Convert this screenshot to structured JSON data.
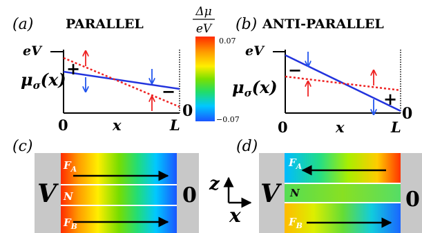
{
  "panels": {
    "a": {
      "letter": "(a)",
      "title": "PARALLEL"
    },
    "b": {
      "letter": "(b)",
      "title": "ANTI-PARALLEL"
    },
    "c": {
      "letter": "(c)"
    },
    "d": {
      "letter": "(d)"
    }
  },
  "axes": {
    "ylabel_var": "μ",
    "ylabel_sub": "σ",
    "ylabel_arg": "(x)",
    "ytop": "eV",
    "yzero": "0",
    "x0": "0",
    "xlabel": "x",
    "xend": "L"
  },
  "signs": {
    "plus": "+",
    "minus": "−"
  },
  "colorbar": {
    "num": "Δμ",
    "den": "eV",
    "max": "0.07",
    "min": "−0.07"
  },
  "strips": {
    "left_voltage": "V",
    "right_voltage": "0",
    "layer_a_main": "F",
    "layer_a_sub": "A",
    "layer_n": "N",
    "layer_b_main": "F",
    "layer_b_sub": "B"
  },
  "coordinates": {
    "z": "z",
    "x": "x"
  },
  "colors": {
    "line_blue": "#2233dd",
    "line_red": "#ee2222",
    "arrow_red": "#ee2222",
    "arrow_blue": "#2255ee",
    "lead_gray": "#c8c8c8"
  }
}
